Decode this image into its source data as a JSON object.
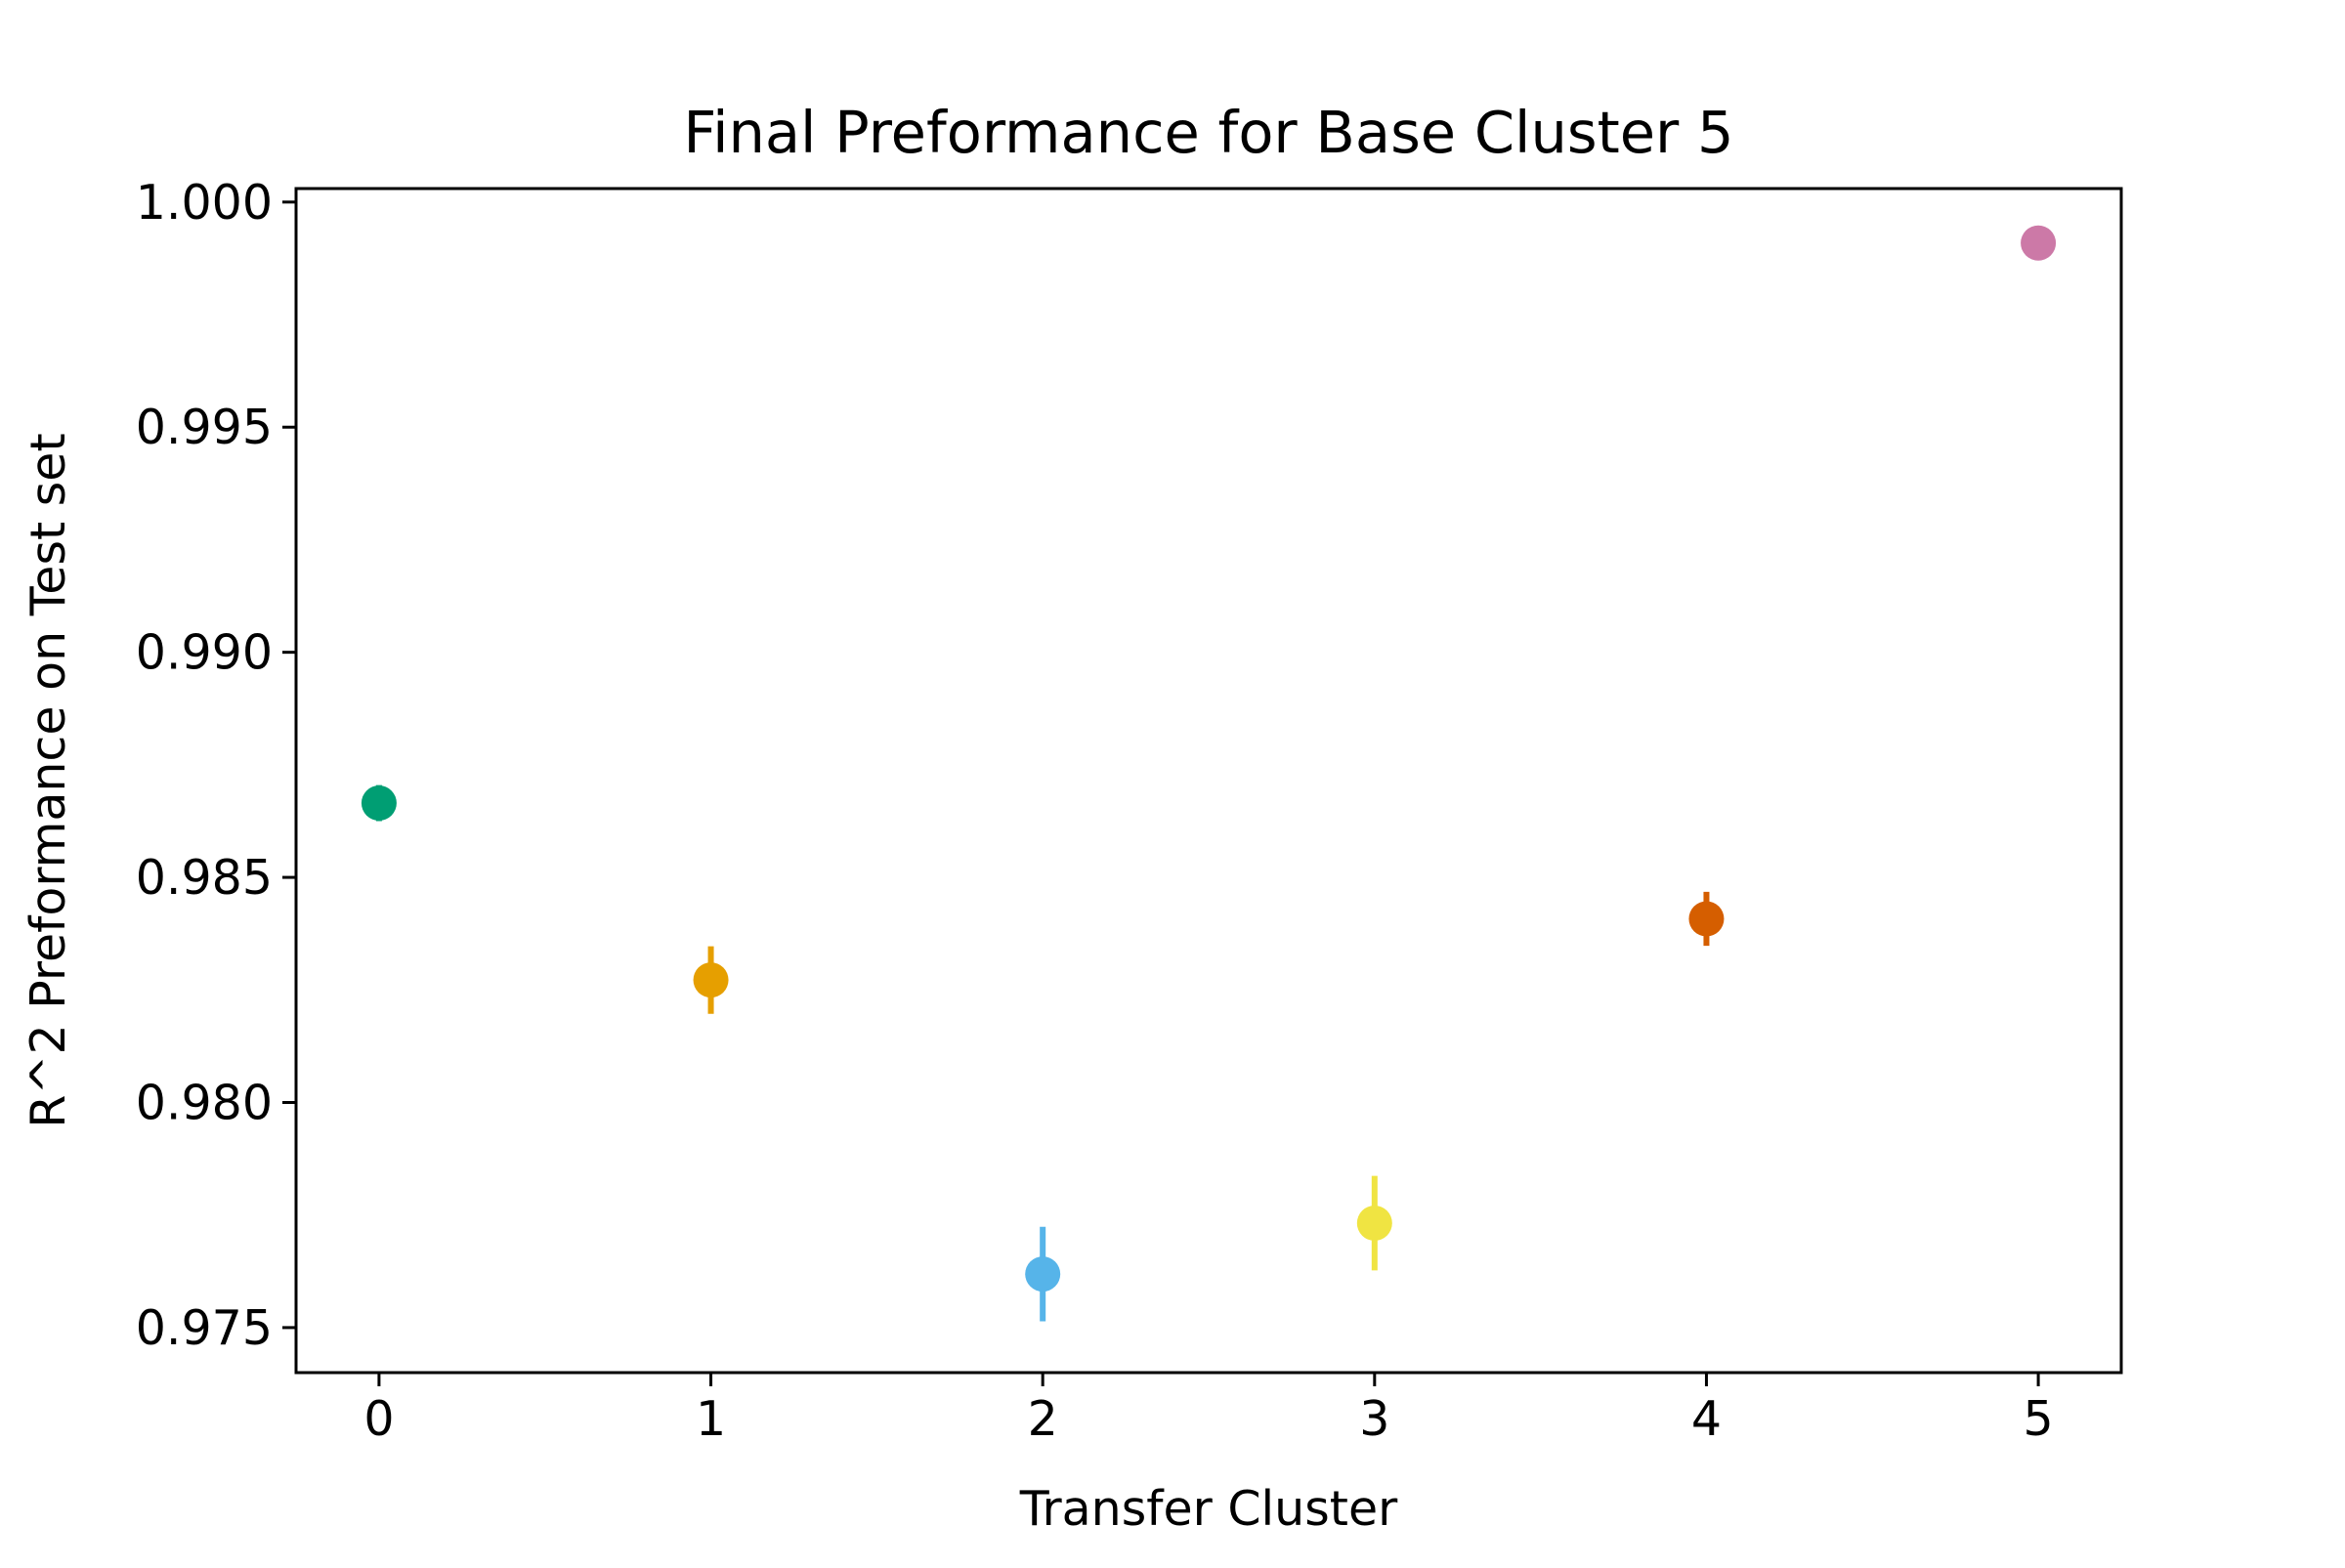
{
  "chart_data": {
    "type": "scatter",
    "title": "Final Preformance for Base Cluster 5",
    "xlabel": "Transfer Cluster",
    "ylabel": "R^2 Preformance on Test set",
    "xlim": [
      -0.25,
      5.25
    ],
    "ylim": [
      0.974,
      1.0003
    ],
    "x_ticks": [
      0,
      1,
      2,
      3,
      4,
      5
    ],
    "x_tick_labels": [
      "0",
      "1",
      "2",
      "3",
      "4",
      "5"
    ],
    "y_ticks": [
      0.975,
      0.98,
      0.985,
      0.99,
      0.995,
      1.0
    ],
    "y_tick_labels": [
      "0.975",
      "0.980",
      "0.985",
      "0.990",
      "0.995",
      "1.000"
    ],
    "grid": false,
    "legend": "none",
    "points": [
      {
        "x": 0,
        "y": 0.98665,
        "err": 0.0004,
        "color": "#009E73"
      },
      {
        "x": 1,
        "y": 0.98272,
        "err": 0.00075,
        "color": "#E69F00"
      },
      {
        "x": 2,
        "y": 0.97619,
        "err": 0.00105,
        "color": "#56B4E9"
      },
      {
        "x": 3,
        "y": 0.97732,
        "err": 0.00105,
        "color": "#F0E442"
      },
      {
        "x": 4,
        "y": 0.98408,
        "err": 0.0006,
        "color": "#D55E00"
      },
      {
        "x": 5,
        "y": 0.99909,
        "err": 0.0,
        "color": "#CC79A7"
      }
    ]
  }
}
